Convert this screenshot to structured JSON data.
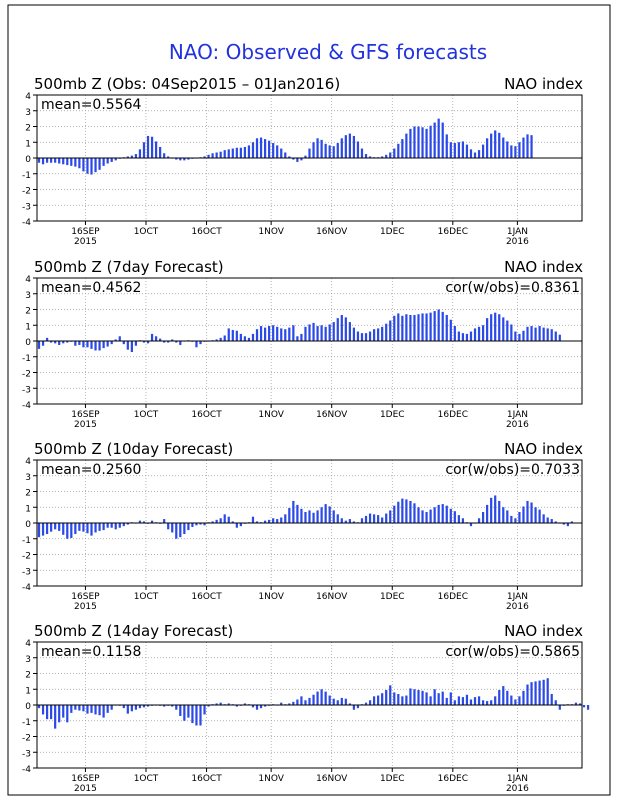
{
  "page_title": "NAO: Observed & GFS forecasts",
  "colors": {
    "bar": "#2b49e6",
    "title": "#2233dd",
    "text": "#000000",
    "grid": "#9a9a9a",
    "zero_line": "#000000"
  },
  "chart_data": [
    {
      "type": "bar",
      "title": "500mb  Z (Obs: 04Sep2015 – 01Jan2016)",
      "right_label": "NAO index",
      "mean_label": "mean=0.5564",
      "cor_label": "",
      "x_start": "2015-09-04",
      "xlim": [
        "2015-09-04",
        "2016-01-17"
      ],
      "ylim": [
        -4,
        4
      ],
      "yticks": [
        -4,
        -3,
        -2,
        -1,
        0,
        1,
        2,
        3,
        4
      ],
      "xtick_labels": [
        {
          "date": "2015-09-16",
          "text": [
            "16SEP",
            "2015"
          ]
        },
        {
          "date": "2015-10-01",
          "text": [
            "1OCT"
          ]
        },
        {
          "date": "2015-10-16",
          "text": [
            "16OCT"
          ]
        },
        {
          "date": "2015-11-01",
          "text": [
            "1NOV"
          ]
        },
        {
          "date": "2015-11-16",
          "text": [
            "16NOV"
          ]
        },
        {
          "date": "2015-12-01",
          "text": [
            "1DEC"
          ]
        },
        {
          "date": "2015-12-16",
          "text": [
            "16DEC"
          ]
        },
        {
          "date": "2016-01-01",
          "text": [
            "1JAN",
            "2016"
          ]
        }
      ],
      "grid": true,
      "values": [
        -0.3,
        -0.4,
        -0.3,
        -0.3,
        -0.3,
        -0.35,
        -0.4,
        -0.45,
        -0.5,
        -0.55,
        -0.65,
        -0.85,
        -1.0,
        -1.05,
        -0.9,
        -0.75,
        -0.5,
        -0.35,
        -0.25,
        -0.15,
        -0.05,
        0.05,
        0.1,
        0.15,
        0.25,
        0.55,
        1.0,
        1.4,
        1.35,
        1.05,
        0.7,
        0.3,
        0.1,
        0.0,
        -0.1,
        -0.15,
        -0.15,
        -0.1,
        -0.05,
        0.0,
        0.05,
        0.1,
        0.2,
        0.3,
        0.35,
        0.4,
        0.5,
        0.55,
        0.6,
        0.65,
        0.65,
        0.7,
        0.8,
        1.0,
        1.25,
        1.3,
        1.2,
        1.1,
        0.95,
        0.8,
        0.6,
        0.35,
        0.1,
        -0.1,
        -0.25,
        -0.15,
        0.15,
        0.6,
        1.0,
        1.25,
        1.15,
        0.9,
        0.8,
        0.75,
        0.95,
        1.25,
        1.45,
        1.55,
        1.4,
        1.05,
        0.6,
        0.25,
        0.1,
        0.05,
        0.05,
        0.1,
        0.2,
        0.35,
        0.6,
        0.9,
        1.2,
        1.55,
        1.85,
        2.0,
        2.0,
        1.95,
        1.85,
        2.05,
        2.25,
        2.5,
        2.25,
        1.5,
        1.0,
        0.95,
        1.0,
        1.05,
        0.85,
        0.55,
        0.35,
        0.5,
        0.85,
        1.25,
        1.55,
        1.75,
        1.6,
        1.3,
        1.05,
        0.8,
        0.75,
        1.0,
        1.3,
        1.5,
        1.45
      ]
    },
    {
      "type": "bar",
      "title": "500mb  Z (7day Forecast)",
      "right_label": "NAO index",
      "mean_label": "mean=0.4562",
      "cor_label": "cor(w/obs)=0.8361",
      "x_start": "2015-09-04",
      "xlim": [
        "2015-09-04",
        "2016-01-17"
      ],
      "ylim": [
        -4,
        4
      ],
      "yticks": [
        -4,
        -3,
        -2,
        -1,
        0,
        1,
        2,
        3,
        4
      ],
      "xtick_labels": [
        {
          "date": "2015-09-16",
          "text": [
            "16SEP",
            "2015"
          ]
        },
        {
          "date": "2015-10-01",
          "text": [
            "1OCT"
          ]
        },
        {
          "date": "2015-10-16",
          "text": [
            "16OCT"
          ]
        },
        {
          "date": "2015-11-01",
          "text": [
            "1NOV"
          ]
        },
        {
          "date": "2015-11-16",
          "text": [
            "16NOV"
          ]
        },
        {
          "date": "2015-12-01",
          "text": [
            "1DEC"
          ]
        },
        {
          "date": "2015-12-16",
          "text": [
            "16DEC"
          ]
        },
        {
          "date": "2016-01-01",
          "text": [
            "1JAN",
            "2016"
          ]
        }
      ],
      "grid": true,
      "values": [
        -0.5,
        -0.3,
        0.2,
        -0.1,
        -0.15,
        -0.25,
        -0.15,
        -0.1,
        -0.05,
        -0.3,
        -0.25,
        -0.4,
        -0.4,
        -0.5,
        -0.6,
        -0.6,
        -0.45,
        -0.35,
        -0.2,
        0.1,
        0.3,
        -0.2,
        -0.55,
        -0.7,
        -0.3,
        0.05,
        -0.1,
        -0.15,
        0.45,
        0.3,
        0.15,
        -0.1,
        -0.1,
        0.1,
        -0.1,
        -0.25,
        0.0,
        0.05,
        -0.05,
        -0.4,
        -0.2,
        -0.05,
        0.0,
        0.05,
        0.1,
        0.2,
        0.35,
        0.8,
        0.7,
        0.65,
        0.45,
        0.3,
        0.2,
        0.45,
        0.75,
        0.95,
        0.85,
        0.95,
        1.0,
        0.9,
        0.8,
        0.75,
        0.85,
        1.0,
        0.3,
        0.45,
        0.9,
        1.05,
        1.15,
        0.95,
        1.0,
        0.9,
        1.05,
        1.2,
        1.45,
        1.65,
        1.5,
        1.2,
        0.85,
        0.6,
        0.5,
        0.5,
        0.6,
        0.75,
        0.8,
        0.9,
        1.1,
        1.3,
        1.6,
        1.75,
        1.6,
        1.7,
        1.65,
        1.65,
        1.7,
        1.75,
        1.75,
        1.8,
        1.9,
        2.0,
        1.85,
        1.65,
        1.35,
        0.95,
        0.6,
        0.5,
        0.45,
        0.6,
        0.8,
        0.9,
        1.0,
        1.45,
        1.7,
        1.8,
        1.7,
        1.5,
        1.3,
        1.05,
        0.6,
        0.45,
        0.65,
        0.9,
        0.95,
        0.85,
        0.95,
        0.85,
        0.8,
        0.75,
        0.6,
        0.4
      ]
    },
    {
      "type": "bar",
      "title": "500mb  Z (10day Forecast)",
      "right_label": "NAO index",
      "mean_label": "mean=0.2560",
      "cor_label": "cor(w/obs)=0.7033",
      "x_start": "2015-09-04",
      "xlim": [
        "2015-09-04",
        "2016-01-17"
      ],
      "ylim": [
        -4,
        4
      ],
      "yticks": [
        -4,
        -3,
        -2,
        -1,
        0,
        1,
        2,
        3,
        4
      ],
      "xtick_labels": [
        {
          "date": "2015-09-16",
          "text": [
            "16SEP",
            "2015"
          ]
        },
        {
          "date": "2015-10-01",
          "text": [
            "1OCT"
          ]
        },
        {
          "date": "2015-10-16",
          "text": [
            "16OCT"
          ]
        },
        {
          "date": "2015-11-01",
          "text": [
            "1NOV"
          ]
        },
        {
          "date": "2015-11-16",
          "text": [
            "16NOV"
          ]
        },
        {
          "date": "2015-12-01",
          "text": [
            "1DEC"
          ]
        },
        {
          "date": "2015-12-16",
          "text": [
            "16DEC"
          ]
        },
        {
          "date": "2016-01-01",
          "text": [
            "1JAN",
            "2016"
          ]
        }
      ],
      "grid": true,
      "values": [
        -0.9,
        -0.8,
        -0.7,
        -0.55,
        -0.4,
        -0.5,
        -0.75,
        -1.0,
        -0.95,
        -0.7,
        -0.5,
        -0.55,
        -0.65,
        -0.8,
        -0.6,
        -0.5,
        -0.45,
        -0.3,
        -0.3,
        -0.4,
        -0.3,
        -0.2,
        -0.1,
        0.05,
        0.0,
        0.15,
        0.1,
        -0.05,
        0.15,
        0.05,
        -0.05,
        0.25,
        -0.4,
        -0.6,
        -1.0,
        -0.9,
        -0.7,
        -0.45,
        -0.25,
        -0.15,
        -0.1,
        -0.15,
        0.05,
        0.1,
        0.2,
        0.3,
        0.55,
        0.4,
        0.1,
        -0.3,
        -0.2,
        -0.05,
        0.05,
        0.4,
        0.1,
        0.05,
        0.15,
        0.2,
        0.3,
        0.25,
        0.35,
        0.55,
        0.95,
        1.4,
        1.15,
        0.9,
        0.7,
        0.8,
        0.65,
        0.8,
        1.0,
        1.2,
        1.05,
        0.8,
        0.55,
        0.3,
        0.15,
        0.25,
        0.1,
        0.05,
        0.3,
        0.45,
        0.6,
        0.55,
        0.5,
        0.35,
        0.6,
        0.8,
        1.1,
        1.35,
        1.55,
        1.5,
        1.4,
        1.25,
        1.0,
        0.8,
        0.7,
        0.85,
        1.0,
        1.15,
        1.2,
        1.1,
        0.9,
        0.75,
        0.5,
        0.3,
        0.05,
        -0.2,
        0.0,
        0.3,
        0.7,
        1.15,
        1.6,
        1.75,
        1.4,
        1.0,
        0.8,
        0.45,
        0.3,
        0.7,
        1.05,
        1.4,
        1.3,
        1.0,
        0.85,
        0.55,
        0.35,
        0.25,
        0.1,
        0.0,
        -0.1,
        -0.2,
        0.1
      ]
    },
    {
      "type": "bar",
      "title": "500mb  Z (14day Forecast)",
      "right_label": "NAO index",
      "mean_label": "mean=0.1158",
      "cor_label": "cor(w/obs)=0.5865",
      "x_start": "2015-09-04",
      "xlim": [
        "2015-09-04",
        "2016-01-17"
      ],
      "ylim": [
        -4,
        4
      ],
      "yticks": [
        -4,
        -3,
        -2,
        -1,
        0,
        1,
        2,
        3,
        4
      ],
      "xtick_labels": [
        {
          "date": "2015-09-16",
          "text": [
            "16SEP",
            "2015"
          ]
        },
        {
          "date": "2015-10-01",
          "text": [
            "1OCT"
          ]
        },
        {
          "date": "2015-10-16",
          "text": [
            "16OCT"
          ]
        },
        {
          "date": "2015-11-01",
          "text": [
            "1NOV"
          ]
        },
        {
          "date": "2015-11-16",
          "text": [
            "16NOV"
          ]
        },
        {
          "date": "2015-12-01",
          "text": [
            "1DEC"
          ]
        },
        {
          "date": "2015-12-16",
          "text": [
            "16DEC"
          ]
        },
        {
          "date": "2016-01-01",
          "text": [
            "1JAN",
            "2016"
          ]
        }
      ],
      "grid": true,
      "values": [
        -0.2,
        -0.6,
        -0.9,
        -0.9,
        -1.5,
        -1.1,
        -0.8,
        -1.1,
        -0.5,
        -0.3,
        -0.35,
        -0.4,
        -0.55,
        -0.5,
        -0.6,
        -0.65,
        -0.8,
        -0.5,
        -0.3,
        0.0,
        -0.05,
        -0.2,
        -0.55,
        -0.4,
        -0.3,
        -0.2,
        -0.15,
        -0.1,
        -0.05,
        0.0,
        -0.05,
        -0.1,
        -0.05,
        -0.1,
        -0.3,
        -0.7,
        -1.0,
        -0.8,
        -1.15,
        -1.3,
        -1.3,
        -0.6,
        -0.1,
        0.05,
        0.1,
        0.15,
        0.05,
        0.1,
        0.05,
        -0.1,
        -0.05,
        0.1,
        0.05,
        -0.15,
        -0.3,
        -0.2,
        -0.1,
        -0.05,
        0.05,
        0.0,
        0.15,
        0.05,
        0.1,
        0.2,
        0.35,
        0.55,
        0.3,
        0.45,
        0.65,
        0.85,
        1.0,
        0.85,
        0.6,
        0.4,
        0.3,
        0.45,
        0.4,
        0.1,
        -0.3,
        -0.2,
        0.05,
        0.15,
        0.3,
        0.55,
        0.6,
        0.75,
        0.95,
        1.25,
        0.8,
        0.7,
        0.55,
        0.6,
        1.05,
        1.0,
        0.95,
        0.9,
        0.8,
        0.55,
        1.0,
        0.75,
        0.85,
        0.45,
        0.8,
        0.3,
        0.55,
        0.5,
        0.65,
        0.35,
        0.5,
        0.55,
        0.3,
        0.25,
        0.3,
        0.55,
        0.95,
        1.2,
        0.9,
        0.6,
        0.35,
        0.55,
        0.9,
        1.3,
        1.45,
        1.5,
        1.55,
        1.6,
        1.7,
        0.7,
        0.3,
        -0.3,
        -0.05,
        0.05,
        0.05,
        0.15,
        0.1,
        -0.15,
        -0.3
      ]
    }
  ]
}
